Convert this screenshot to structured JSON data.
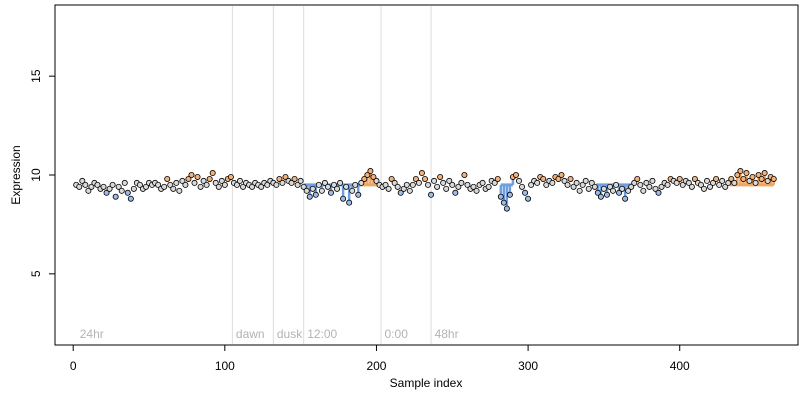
{
  "chart_data": {
    "type": "scatter",
    "title": "",
    "xlabel": "Sample index",
    "ylabel": "Expression",
    "xlim": [
      -12,
      478
    ],
    "ylim": [
      1.4,
      18.6
    ],
    "x_ticks": [
      0,
      100,
      200,
      300,
      400
    ],
    "y_ticks": [
      5,
      10,
      15
    ],
    "grid": false,
    "legend": "none",
    "baseline": 9.5,
    "colors": {
      "point_stroke": "#000000",
      "neutral_fill": "#d9d9d9",
      "high_fill": "#f4b27a",
      "low_fill": "#9bbbe8",
      "high_segment": "#f2a55f",
      "low_segment": "#6f9fe0",
      "separator": "#dddddd",
      "annotation": "#b3b3b3"
    },
    "segments": [
      {
        "x_start": 152,
        "x_end": 190,
        "type": "low"
      },
      {
        "x_start": 190,
        "x_end": 202,
        "type": "high"
      },
      {
        "x_start": 282,
        "x_end": 290,
        "type": "low"
      },
      {
        "x_start": 345,
        "x_end": 370,
        "type": "low"
      },
      {
        "x_start": 433,
        "x_end": 462,
        "type": "high"
      }
    ],
    "annotations": [
      {
        "label": "24hr",
        "x": 3
      },
      {
        "label": "dawn",
        "x": 106
      },
      {
        "label": "dusk",
        "x": 133
      },
      {
        "label": "12:00",
        "x": 153
      },
      {
        "label": "0:00",
        "x": 204
      },
      {
        "label": "48hr",
        "x": 237
      }
    ],
    "vlines": [
      105,
      132,
      152,
      203,
      236
    ],
    "points": [
      [
        2,
        9.5
      ],
      [
        4,
        9.4
      ],
      [
        6,
        9.7
      ],
      [
        8,
        9.5
      ],
      [
        10,
        9.2
      ],
      [
        12,
        9.4
      ],
      [
        14,
        9.6
      ],
      [
        16,
        9.5
      ],
      [
        18,
        9.3
      ],
      [
        20,
        9.4
      ],
      [
        22,
        9.1
      ],
      [
        24,
        9.3
      ],
      [
        26,
        9.5
      ],
      [
        28,
        8.9
      ],
      [
        30,
        9.4
      ],
      [
        32,
        9.2
      ],
      [
        34,
        9.6
      ],
      [
        36,
        9.1
      ],
      [
        38,
        8.8
      ],
      [
        40,
        9.3
      ],
      [
        42,
        9.6
      ],
      [
        44,
        9.5
      ],
      [
        46,
        9.3
      ],
      [
        48,
        9.4
      ],
      [
        50,
        9.6
      ],
      [
        52,
        9.5
      ],
      [
        54,
        9.6
      ],
      [
        56,
        9.5
      ],
      [
        58,
        9.3
      ],
      [
        60,
        9.4
      ],
      [
        62,
        9.8
      ],
      [
        64,
        9.5
      ],
      [
        66,
        9.3
      ],
      [
        68,
        9.6
      ],
      [
        70,
        9.2
      ],
      [
        72,
        9.7
      ],
      [
        74,
        9.5
      ],
      [
        76,
        9.8
      ],
      [
        78,
        10.0
      ],
      [
        80,
        9.6
      ],
      [
        82,
        9.9
      ],
      [
        84,
        9.4
      ],
      [
        86,
        9.7
      ],
      [
        88,
        9.5
      ],
      [
        90,
        9.8
      ],
      [
        92,
        10.1
      ],
      [
        94,
        9.6
      ],
      [
        96,
        9.4
      ],
      [
        98,
        9.7
      ],
      [
        100,
        9.5
      ],
      [
        102,
        9.8
      ],
      [
        104,
        9.9
      ],
      [
        106,
        9.6
      ],
      [
        108,
        9.5
      ],
      [
        110,
        9.7
      ],
      [
        112,
        9.4
      ],
      [
        114,
        9.6
      ],
      [
        116,
        9.5
      ],
      [
        118,
        9.4
      ],
      [
        120,
        9.6
      ],
      [
        122,
        9.5
      ],
      [
        124,
        9.4
      ],
      [
        126,
        9.6
      ],
      [
        128,
        9.5
      ],
      [
        130,
        9.7
      ],
      [
        132,
        9.6
      ],
      [
        134,
        9.5
      ],
      [
        136,
        9.8
      ],
      [
        138,
        9.6
      ],
      [
        140,
        9.9
      ],
      [
        142,
        9.7
      ],
      [
        144,
        9.6
      ],
      [
        146,
        9.8
      ],
      [
        148,
        9.5
      ],
      [
        150,
        9.7
      ],
      [
        152,
        9.4
      ],
      [
        154,
        9.2
      ],
      [
        156,
        8.9
      ],
      [
        158,
        9.3
      ],
      [
        160,
        9.0
      ],
      [
        162,
        9.5
      ],
      [
        164,
        9.2
      ],
      [
        166,
        9.6
      ],
      [
        168,
        9.4
      ],
      [
        170,
        9.1
      ],
      [
        172,
        9.5
      ],
      [
        174,
        9.3
      ],
      [
        176,
        9.6
      ],
      [
        178,
        8.8
      ],
      [
        180,
        9.4
      ],
      [
        182,
        8.6
      ],
      [
        184,
        9.2
      ],
      [
        186,
        9.5
      ],
      [
        188,
        9.0
      ],
      [
        190,
        9.6
      ],
      [
        192,
        9.8
      ],
      [
        194,
        10.0
      ],
      [
        196,
        10.2
      ],
      [
        198,
        9.9
      ],
      [
        200,
        9.7
      ],
      [
        202,
        9.5
      ],
      [
        204,
        9.4
      ],
      [
        206,
        9.5
      ],
      [
        208,
        9.3
      ],
      [
        210,
        9.8
      ],
      [
        212,
        9.6
      ],
      [
        214,
        9.4
      ],
      [
        216,
        9.1
      ],
      [
        218,
        9.3
      ],
      [
        220,
        9.5
      ],
      [
        222,
        9.2
      ],
      [
        224,
        9.5
      ],
      [
        226,
        9.8
      ],
      [
        228,
        9.6
      ],
      [
        230,
        10.1
      ],
      [
        232,
        9.8
      ],
      [
        234,
        9.5
      ],
      [
        236,
        9.0
      ],
      [
        238,
        9.7
      ],
      [
        240,
        9.4
      ],
      [
        242,
        9.9
      ],
      [
        244,
        9.6
      ],
      [
        246,
        9.3
      ],
      [
        248,
        9.7
      ],
      [
        250,
        9.5
      ],
      [
        252,
        9.1
      ],
      [
        254,
        9.4
      ],
      [
        256,
        9.6
      ],
      [
        258,
        10.0
      ],
      [
        260,
        9.5
      ],
      [
        262,
        9.3
      ],
      [
        264,
        9.4
      ],
      [
        266,
        9.2
      ],
      [
        268,
        9.5
      ],
      [
        270,
        9.6
      ],
      [
        272,
        9.3
      ],
      [
        274,
        9.4
      ],
      [
        276,
        9.7
      ],
      [
        278,
        9.6
      ],
      [
        280,
        9.8
      ],
      [
        282,
        8.9
      ],
      [
        284,
        8.6
      ],
      [
        286,
        8.3
      ],
      [
        288,
        9.0
      ],
      [
        290,
        9.9
      ],
      [
        292,
        10.0
      ],
      [
        294,
        9.7
      ],
      [
        296,
        9.4
      ],
      [
        298,
        9.1
      ],
      [
        300,
        8.8
      ],
      [
        302,
        9.5
      ],
      [
        304,
        9.7
      ],
      [
        306,
        9.6
      ],
      [
        308,
        9.9
      ],
      [
        310,
        9.8
      ],
      [
        312,
        9.5
      ],
      [
        314,
        9.7
      ],
      [
        316,
        9.6
      ],
      [
        318,
        9.9
      ],
      [
        320,
        9.8
      ],
      [
        322,
        10.0
      ],
      [
        324,
        9.7
      ],
      [
        326,
        9.5
      ],
      [
        328,
        9.8
      ],
      [
        330,
        9.4
      ],
      [
        332,
        9.6
      ],
      [
        334,
        9.2
      ],
      [
        336,
        9.5
      ],
      [
        338,
        9.7
      ],
      [
        340,
        9.3
      ],
      [
        342,
        9.6
      ],
      [
        344,
        9.4
      ],
      [
        346,
        9.1
      ],
      [
        348,
        8.9
      ],
      [
        350,
        9.3
      ],
      [
        352,
        9.0
      ],
      [
        354,
        9.4
      ],
      [
        356,
        9.2
      ],
      [
        358,
        9.5
      ],
      [
        360,
        9.1
      ],
      [
        362,
        9.3
      ],
      [
        364,
        8.8
      ],
      [
        366,
        9.2
      ],
      [
        368,
        9.4
      ],
      [
        370,
        9.6
      ],
      [
        372,
        9.8
      ],
      [
        374,
        9.5
      ],
      [
        376,
        9.2
      ],
      [
        378,
        9.6
      ],
      [
        380,
        9.4
      ],
      [
        382,
        9.7
      ],
      [
        384,
        9.3
      ],
      [
        386,
        9.1
      ],
      [
        388,
        9.4
      ],
      [
        390,
        9.6
      ],
      [
        392,
        9.5
      ],
      [
        394,
        9.8
      ],
      [
        396,
        9.7
      ],
      [
        398,
        9.6
      ],
      [
        400,
        9.8
      ],
      [
        402,
        9.5
      ],
      [
        404,
        9.7
      ],
      [
        406,
        9.6
      ],
      [
        408,
        9.4
      ],
      [
        410,
        9.8
      ],
      [
        412,
        9.6
      ],
      [
        414,
        9.5
      ],
      [
        416,
        9.3
      ],
      [
        418,
        9.7
      ],
      [
        420,
        9.4
      ],
      [
        422,
        9.6
      ],
      [
        424,
        9.8
      ],
      [
        426,
        9.5
      ],
      [
        428,
        9.7
      ],
      [
        430,
        9.4
      ],
      [
        432,
        9.6
      ],
      [
        434,
        9.8
      ],
      [
        436,
        9.6
      ],
      [
        438,
        10.0
      ],
      [
        440,
        10.2
      ],
      [
        442,
        9.8
      ],
      [
        444,
        10.1
      ],
      [
        446,
        9.7
      ],
      [
        448,
        9.9
      ],
      [
        450,
        9.6
      ],
      [
        452,
        10.0
      ],
      [
        454,
        9.8
      ],
      [
        456,
        10.1
      ],
      [
        458,
        9.7
      ],
      [
        460,
        9.9
      ],
      [
        462,
        9.8
      ]
    ]
  }
}
